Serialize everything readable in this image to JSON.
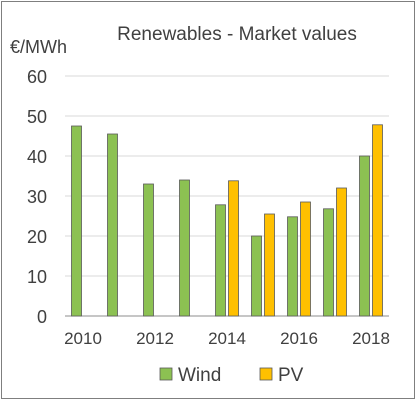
{
  "chart_data": {
    "type": "bar",
    "title": "Renewables  - Market values",
    "ylabel": "€/MWh",
    "xlabel": "",
    "ylim": [
      0,
      60
    ],
    "yticks": [
      0,
      10,
      20,
      30,
      40,
      50,
      60
    ],
    "categories": [
      "2010",
      "2011",
      "2012",
      "2013",
      "2014",
      "2015",
      "2016",
      "2017",
      "2018"
    ],
    "xtick_labels": [
      "2010",
      "2012",
      "2014",
      "2016",
      "2018"
    ],
    "grid": true,
    "legend_position": "bottom",
    "series": [
      {
        "name": "Wind",
        "color": "#8cc152",
        "values": [
          47.5,
          45.5,
          33,
          34,
          27.8,
          20,
          24.8,
          26.8,
          40
        ]
      },
      {
        "name": "PV",
        "color": "#ffc000",
        "values": [
          null,
          null,
          null,
          null,
          33.8,
          25.5,
          28.5,
          32,
          47.8
        ]
      }
    ]
  }
}
